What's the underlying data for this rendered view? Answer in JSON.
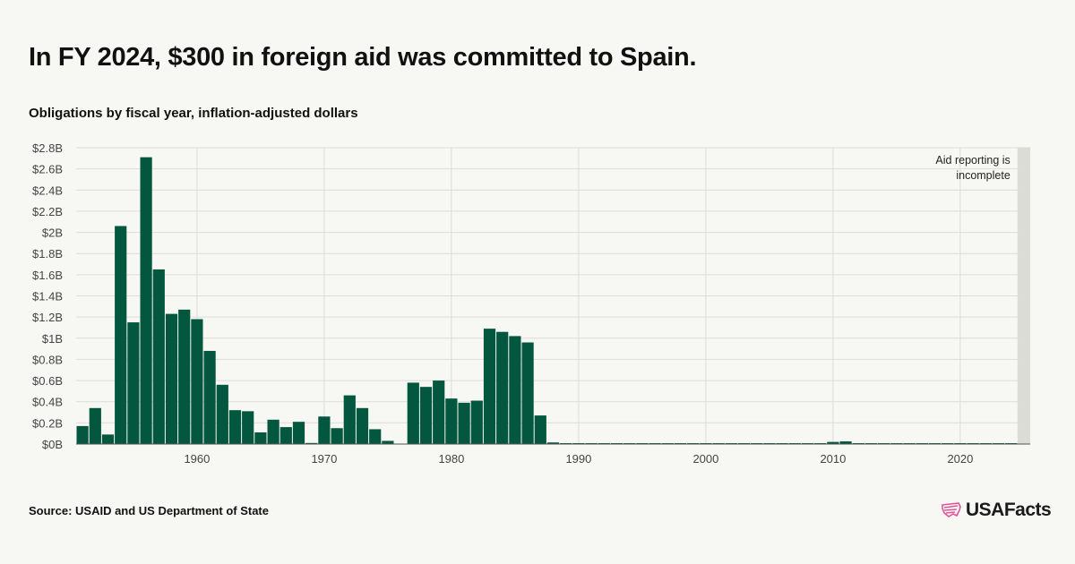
{
  "header": {
    "title": "In FY 2024, $300 in foreign aid was committed to Spain.",
    "subtitle": "Obligations by fiscal year, inflation-adjusted dollars"
  },
  "footer": {
    "source": "Source: USAID and US Department of State",
    "logo_text": "USAFacts"
  },
  "colors": {
    "bar": "#04573f",
    "grid": "#dcdcd8",
    "shade": "#dcdcd6",
    "background": "#f7f7f3"
  },
  "chart_data": {
    "type": "bar",
    "title": "In FY 2024, $300 in foreign aid was committed to Spain.",
    "subtitle": "Obligations by fiscal year, inflation-adjusted dollars",
    "xlabel": "",
    "ylabel": "",
    "xlim": [
      1950.5,
      2025.5
    ],
    "ylim": [
      0,
      2.8
    ],
    "y_unit": "billions USD",
    "y_ticks": [
      0,
      0.2,
      0.4,
      0.6,
      0.8,
      1,
      1.2,
      1.4,
      1.6,
      1.8,
      2,
      2.2,
      2.4,
      2.6,
      2.8
    ],
    "y_tick_labels": [
      "$0B",
      "$0.2B",
      "$0.4B",
      "$0.6B",
      "$0.8B",
      "$1B",
      "$1.2B",
      "$1.4B",
      "$1.6B",
      "$1.8B",
      "$2B",
      "$2.2B",
      "$2.4B",
      "$2.6B",
      "$2.8B"
    ],
    "x_ticks": [
      1960,
      1970,
      1980,
      1990,
      2000,
      2010,
      2020
    ],
    "x_tick_labels": [
      "1960",
      "1970",
      "1980",
      "1990",
      "2000",
      "2010",
      "2020"
    ],
    "grid": true,
    "shaded_region": {
      "x_start": 2024.5,
      "x_end": 2025.5,
      "label_lines": [
        "Aid reporting is",
        "incomplete"
      ]
    },
    "series": [
      {
        "name": "Obligations",
        "x": [
          1951,
          1952,
          1953,
          1954,
          1955,
          1956,
          1957,
          1958,
          1959,
          1960,
          1961,
          1962,
          1963,
          1964,
          1965,
          1966,
          1967,
          1968,
          1969,
          1970,
          1971,
          1972,
          1973,
          1974,
          1975,
          1976,
          1977,
          1978,
          1979,
          1980,
          1981,
          1982,
          1983,
          1984,
          1985,
          1986,
          1987,
          1988,
          1989,
          1990,
          1991,
          1992,
          1993,
          1994,
          1995,
          1996,
          1997,
          1998,
          1999,
          2000,
          2001,
          2002,
          2003,
          2004,
          2005,
          2006,
          2007,
          2008,
          2009,
          2010,
          2011,
          2012,
          2013,
          2014,
          2015,
          2016,
          2017,
          2018,
          2019,
          2020,
          2021,
          2022,
          2023,
          2024
        ],
        "values": [
          0.17,
          0.34,
          0.09,
          2.06,
          1.15,
          2.71,
          1.65,
          1.23,
          1.27,
          1.18,
          0.88,
          0.56,
          0.32,
          0.31,
          0.11,
          0.23,
          0.16,
          0.21,
          0.01,
          0.26,
          0.15,
          0.46,
          0.34,
          0.14,
          0.03,
          0.0,
          0.58,
          0.54,
          0.6,
          0.43,
          0.39,
          0.41,
          1.09,
          1.06,
          1.02,
          0.96,
          0.27,
          0.015,
          0.004,
          0.004,
          0.004,
          0.004,
          0.004,
          0.004,
          0.004,
          0.004,
          0.003,
          0.003,
          0.003,
          0.003,
          0.003,
          0.003,
          0.003,
          0.003,
          0.003,
          0.004,
          0.004,
          0.004,
          0.004,
          0.02,
          0.025,
          0.006,
          0.005,
          0.005,
          0.004,
          0.004,
          0.004,
          0.004,
          0.004,
          0.004,
          0.004,
          0.004,
          0.004,
          3e-07
        ]
      }
    ]
  }
}
